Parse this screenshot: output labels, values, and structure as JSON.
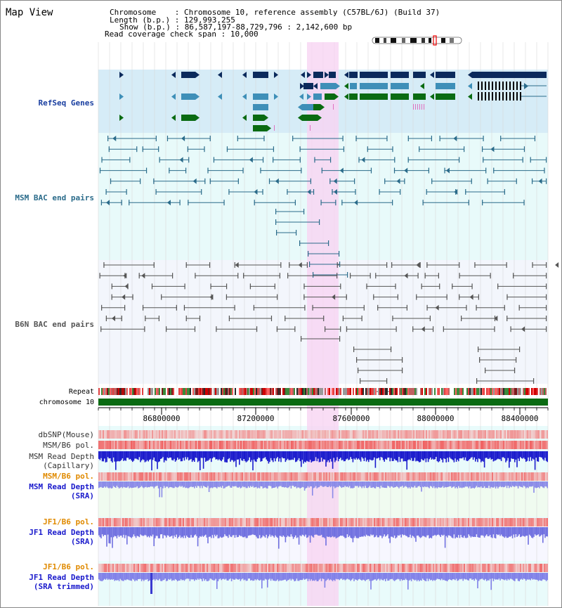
{
  "window": {
    "title": "Map View"
  },
  "header": {
    "chromosome_label": "Chromosome",
    "chromosome_value": "Chromosome 10, reference assembly (C57BL/6J) (Build 37)",
    "length_label": "Length (b.p.)",
    "length_value": "129,993,255",
    "show_label": "Show (b.p.)",
    "show_value": "86,587,197-88,729,796 : 2,142,600 bp",
    "coverage_label": "Read coverage check span",
    "coverage_value": "10,000"
  },
  "tracks": {
    "refseq": "RefSeq Genes",
    "msm_bac": "MSM BAC end pairs",
    "b6n_bac": "B6N BAC end pairs",
    "repeat": "Repeat",
    "chromosome": "chromosome 10",
    "dbsnp": "dbSNP(Mouse)",
    "msm_b6_pol": "MSM/B6 pol.",
    "msm_read_depth_cap_1": "MSM Read Depth",
    "msm_read_depth_cap_2": "(Capillary)",
    "msm_b6_pol_2": "MSM/B6 pol.",
    "msm_read_depth_sra_1": "MSM Read Depth",
    "msm_read_depth_sra_2": "(SRA)",
    "jf1_b6_pol": "JF1/B6 pol.",
    "jf1_read_depth_sra_1": "JF1 Read Depth",
    "jf1_read_depth_sra_2": "(SRA)",
    "jf1_b6_pol_2": "JF1/B6 pol.",
    "jf1_read_depth_trim_1": "JF1 Read Depth",
    "jf1_read_depth_trim_2": "(SRA trimmed)"
  },
  "axis": {
    "ticks": [
      "86800000",
      "87200000",
      "87600000",
      "88000000",
      "88400000"
    ]
  },
  "colors": {
    "refseq_bg": "#d6ecf7",
    "bac_bg": "#e8fafa",
    "highlight": "#f7d5f2",
    "gene_navy": "#0b2a5c",
    "gene_blue": "#3e8fb8",
    "gene_green": "#0a6b12",
    "chromosome_bar": "#0a6b12"
  }
}
